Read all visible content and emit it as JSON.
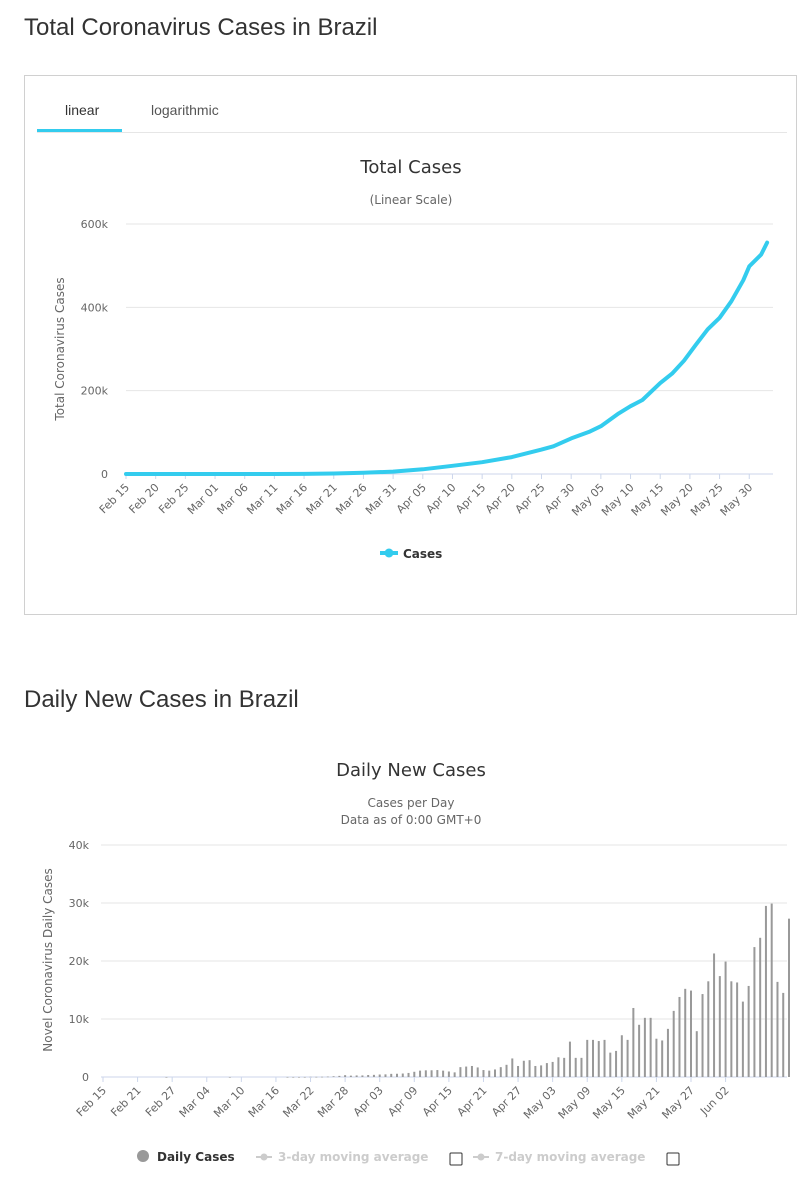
{
  "section1": {
    "title": "Total Coronavirus Cases in Brazil"
  },
  "section2": {
    "title": "Daily New Cases in Brazil"
  },
  "tabs": [
    {
      "label": "linear",
      "active": true
    },
    {
      "label": "logarithmic",
      "active": false
    }
  ],
  "colors": {
    "accent": "#33ccee",
    "bar": "#999999",
    "grid": "#e6e6e6"
  },
  "chart_data": [
    {
      "type": "line",
      "title": "Total Cases",
      "subtitle": "(Linear Scale)",
      "ylabel": "Total Coronavirus Cases",
      "ylim": [
        0,
        600000
      ],
      "yticks": [
        0,
        200000,
        400000,
        600000
      ],
      "ytick_labels": [
        "0",
        "200k",
        "400k",
        "600k"
      ],
      "x_tick_labels": [
        "Feb 15",
        "Feb 20",
        "Feb 25",
        "Mar 01",
        "Mar 06",
        "Mar 11",
        "Mar 16",
        "Mar 21",
        "Mar 26",
        "Mar 31",
        "Apr 05",
        "Apr 10",
        "Apr 15",
        "Apr 20",
        "Apr 25",
        "Apr 30",
        "May 05",
        "May 10",
        "May 15",
        "May 20",
        "May 25",
        "May 30"
      ],
      "legend": "bottom-center",
      "grid": true,
      "series": [
        {
          "name": "Cases",
          "color": "#33ccee",
          "x": [
            "Feb 15",
            "Feb 20",
            "Feb 25",
            "Mar 01",
            "Mar 06",
            "Mar 11",
            "Mar 16",
            "Mar 21",
            "Mar 26",
            "Mar 31",
            "Apr 05",
            "Apr 10",
            "Apr 15",
            "Apr 20",
            "Apr 25",
            "Apr 27",
            "Apr 30",
            "May 03",
            "May 05",
            "May 08",
            "May 10",
            "May 12",
            "May 15",
            "May 17",
            "May 19",
            "May 21",
            "May 23",
            "May 25",
            "May 27",
            "May 29",
            "May 30",
            "Jun 01",
            "Jun 02"
          ],
          "values": [
            0,
            0,
            1,
            2,
            13,
            52,
            234,
            1178,
            2985,
            5717,
            11281,
            19789,
            28320,
            40581,
            58509,
            66501,
            85380,
            101147,
            114715,
            145328,
            162699,
            177589,
            218223,
            241080,
            271885,
            310087,
            347398,
            374898,
            414661,
            465166,
            498440,
            526447,
            555383
          ]
        }
      ]
    },
    {
      "type": "bar",
      "title": "Daily New Cases",
      "subtitle_lines": [
        "Cases per Day",
        "Data as of 0:00 GMT+0"
      ],
      "ylabel": "Novel Coronavirus Daily Cases",
      "ylim": [
        0,
        40000
      ],
      "yticks": [
        0,
        10000,
        20000,
        30000,
        40000
      ],
      "ytick_labels": [
        "0",
        "10k",
        "20k",
        "30k",
        "40k"
      ],
      "x_tick_labels": [
        "Feb 15",
        "Feb 21",
        "Feb 27",
        "Mar 04",
        "Mar 10",
        "Mar 16",
        "Mar 22",
        "Mar 28",
        "Apr 03",
        "Apr 09",
        "Apr 15",
        "Apr 21",
        "Apr 27",
        "May 03",
        "May 09",
        "May 15",
        "May 21",
        "May 27",
        "Jun 02"
      ],
      "start_date": "Feb 15",
      "legend": "bottom-center",
      "grid": true,
      "legend_items": [
        {
          "label": "Daily Cases",
          "enabled": true
        },
        {
          "label": "3-day moving average",
          "enabled": false
        },
        {
          "label": "7-day moving average",
          "enabled": false
        }
      ],
      "series": [
        {
          "name": "Daily Cases",
          "color": "#999999",
          "values": [
            0,
            0,
            0,
            0,
            0,
            0,
            0,
            0,
            0,
            0,
            0,
            1,
            0,
            0,
            0,
            0,
            0,
            0,
            0,
            0,
            0,
            0,
            1,
            0,
            0,
            0,
            0,
            0,
            0,
            0,
            0,
            0,
            8,
            5,
            6,
            9,
            33,
            27,
            40,
            71,
            128,
            193,
            315,
            235,
            268,
            273,
            345,
            370,
            430,
            454,
            542,
            560,
            600,
            700,
            900,
            1100,
            1150,
            1160,
            1200,
            1100,
            950,
            800,
            1700,
            1800,
            1900,
            1650,
            1200,
            1100,
            1300,
            1700,
            2100,
            3200,
            1900,
            2800,
            2900,
            1900,
            2000,
            2400,
            2600,
            3400,
            3300,
            6100,
            3300,
            3300,
            6400,
            6400,
            6200,
            6400,
            4200,
            4500,
            7200,
            6400,
            11900,
            9000,
            10200,
            10200,
            6600,
            6300,
            8300,
            11400,
            13800,
            15200,
            14900,
            7900,
            14300,
            16500,
            21300,
            17400,
            19900,
            16500,
            16300,
            13000,
            15700,
            22400,
            24000,
            29500,
            29900,
            16400,
            14500,
            27300
          ]
        }
      ]
    }
  ]
}
